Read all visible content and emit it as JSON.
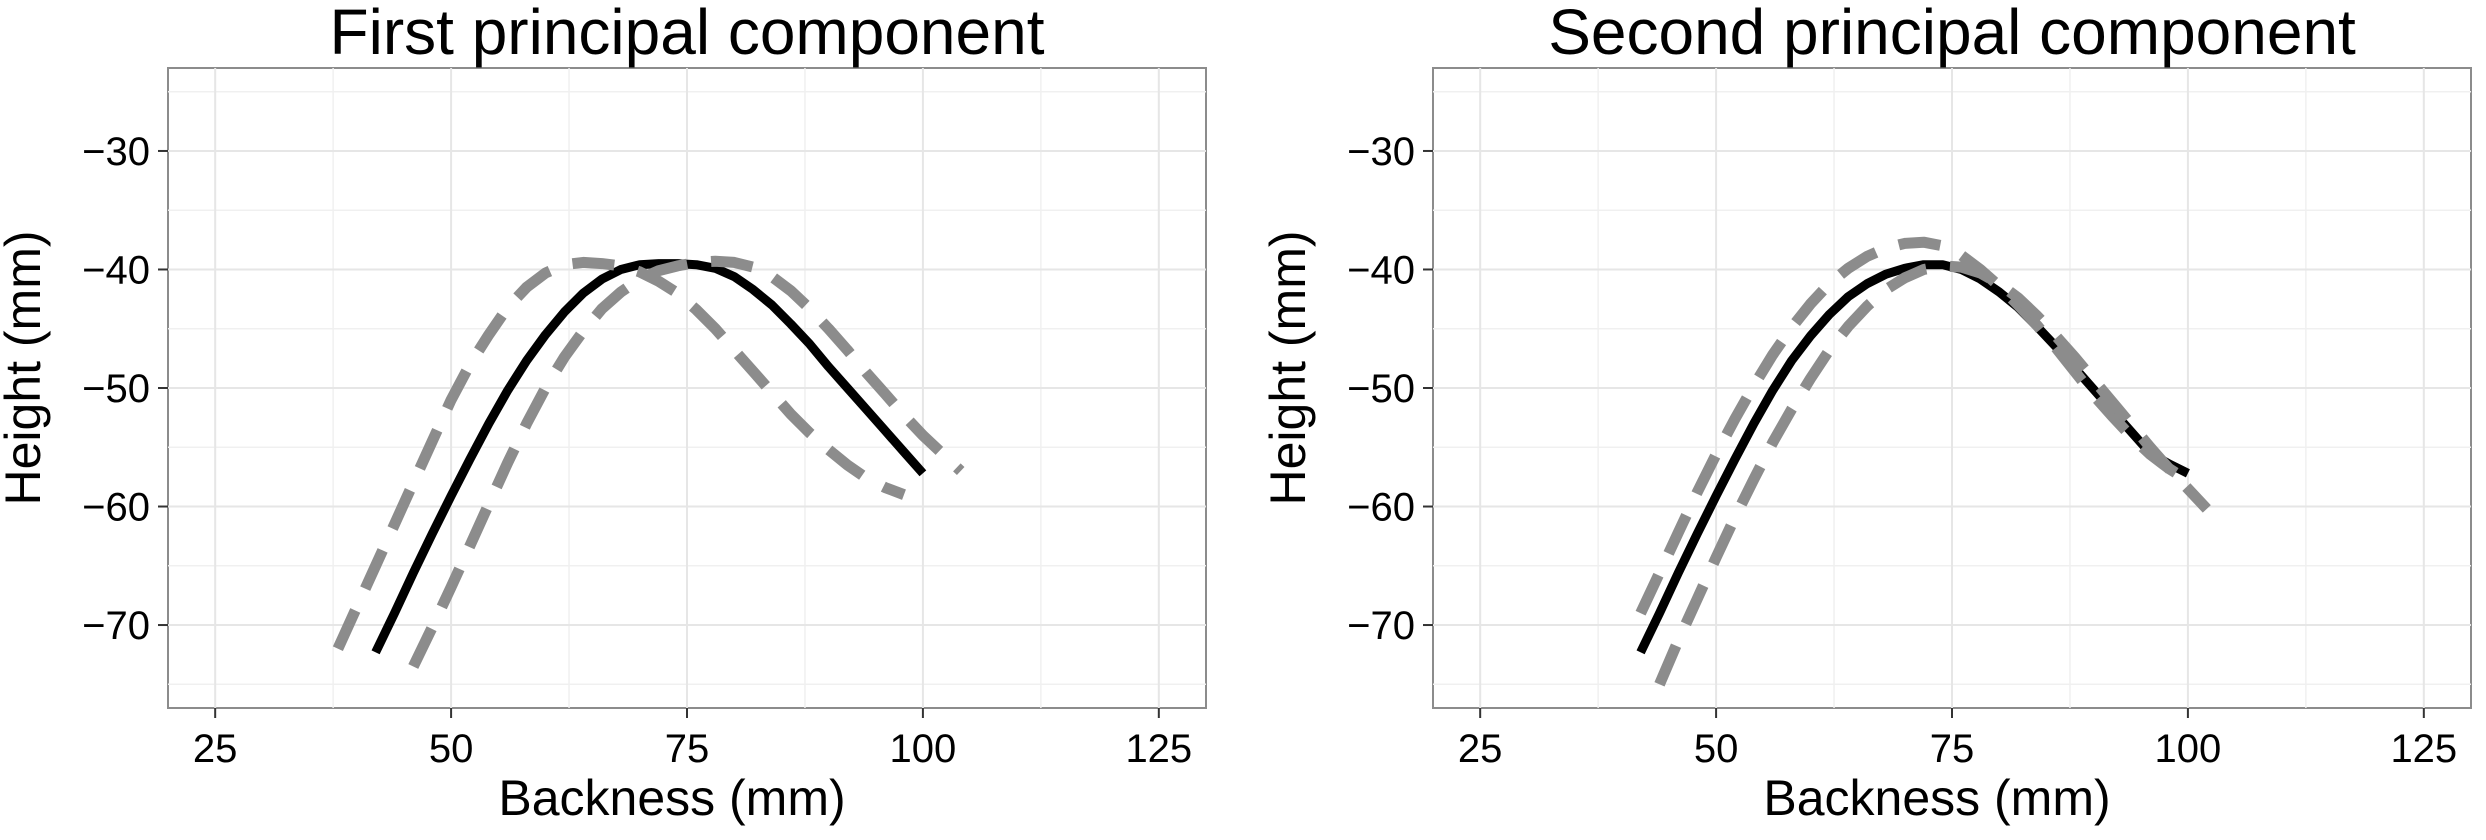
{
  "chart_data": [
    {
      "type": "line",
      "title": "First principal component",
      "xlabel": "Backness (mm)",
      "ylabel": "Height (mm)",
      "xlim": [
        20,
        130
      ],
      "ylim": [
        -77,
        -23
      ],
      "xticks": [
        25,
        50,
        75,
        100,
        125
      ],
      "yticks": [
        -70,
        -60,
        -50,
        -40,
        -30
      ],
      "grid": true,
      "series": [
        {
          "color": "#000000",
          "dash": "solid",
          "x": [
            42,
            44,
            46,
            48,
            50,
            52,
            54,
            56,
            58,
            60,
            62,
            64,
            66,
            68,
            70,
            72,
            74,
            76,
            78,
            80,
            82,
            84,
            86,
            88,
            90,
            92,
            94,
            96,
            98,
            100
          ],
          "y": [
            -72.3,
            -69.0,
            -65.6,
            -62.3,
            -59.1,
            -56.0,
            -53.0,
            -50.2,
            -47.7,
            -45.5,
            -43.6,
            -42.0,
            -40.8,
            -40.0,
            -39.6,
            -39.5,
            -39.5,
            -39.6,
            -39.9,
            -40.6,
            -41.7,
            -43.0,
            -44.6,
            -46.3,
            -48.2,
            -50.0,
            -51.8,
            -53.6,
            -55.4,
            -57.2
          ]
        },
        {
          "color": "#8c8c8c",
          "dash": "dashed",
          "x": [
            38,
            40,
            42,
            44,
            46,
            48,
            50,
            52,
            54,
            56,
            58,
            60,
            62,
            64,
            66,
            68,
            70,
            72,
            74,
            76,
            78,
            80,
            82,
            84,
            86,
            88,
            90,
            92,
            94,
            96,
            98
          ],
          "y": [
            -72.0,
            -68.5,
            -65.0,
            -61.5,
            -58.0,
            -54.5,
            -51.0,
            -48.0,
            -45.5,
            -43.2,
            -41.5,
            -40.3,
            -39.6,
            -39.4,
            -39.5,
            -39.7,
            -40.2,
            -41.0,
            -42.0,
            -43.4,
            -45.0,
            -46.8,
            -48.6,
            -50.4,
            -52.2,
            -53.8,
            -55.2,
            -56.5,
            -57.6,
            -58.4,
            -59.0
          ]
        },
        {
          "color": "#8c8c8c",
          "dash": "dashed",
          "x": [
            46,
            48,
            50,
            52,
            54,
            56,
            58,
            60,
            62,
            64,
            66,
            68,
            70,
            72,
            74,
            76,
            78,
            80,
            82,
            84,
            86,
            88,
            90,
            92,
            94,
            96,
            98,
            100,
            102,
            104
          ],
          "y": [
            -73.5,
            -70.2,
            -66.8,
            -63.3,
            -59.8,
            -56.3,
            -53.0,
            -50.0,
            -47.4,
            -45.2,
            -43.3,
            -41.9,
            -40.8,
            -40.1,
            -39.7,
            -39.4,
            -39.3,
            -39.4,
            -39.8,
            -40.6,
            -41.8,
            -43.3,
            -45.0,
            -46.8,
            -48.7,
            -50.5,
            -52.3,
            -54.0,
            -55.5,
            -57.0
          ]
        }
      ]
    },
    {
      "type": "line",
      "title": "Second principal component",
      "xlabel": "Backness (mm)",
      "ylabel": "Height (mm)",
      "xlim": [
        20,
        130
      ],
      "ylim": [
        -77,
        -23
      ],
      "xticks": [
        25,
        50,
        75,
        100,
        125
      ],
      "yticks": [
        -70,
        -60,
        -50,
        -40,
        -30
      ],
      "grid": true,
      "series": [
        {
          "color": "#000000",
          "dash": "solid",
          "x": [
            42,
            44,
            46,
            48,
            50,
            52,
            54,
            56,
            58,
            60,
            62,
            64,
            66,
            68,
            70,
            72,
            74,
            76,
            78,
            80,
            82,
            84,
            86,
            88,
            90,
            92,
            94,
            96,
            98,
            100
          ],
          "y": [
            -72.3,
            -69.0,
            -65.6,
            -62.3,
            -59.1,
            -56.0,
            -53.0,
            -50.2,
            -47.7,
            -45.6,
            -43.8,
            -42.3,
            -41.2,
            -40.4,
            -39.9,
            -39.6,
            -39.6,
            -40.0,
            -40.8,
            -41.9,
            -43.2,
            -44.8,
            -46.5,
            -48.3,
            -50.1,
            -51.9,
            -53.7,
            -55.5,
            -56.4,
            -57.2
          ]
        },
        {
          "color": "#8c8c8c",
          "dash": "dashed",
          "x": [
            42,
            44,
            46,
            48,
            50,
            52,
            54,
            56,
            58,
            60,
            62,
            64,
            66,
            68,
            70,
            72,
            74,
            76,
            78,
            80,
            82,
            84,
            86,
            88,
            90,
            92,
            94,
            96,
            98,
            100
          ],
          "y": [
            -69.0,
            -65.6,
            -62.2,
            -58.8,
            -55.6,
            -52.6,
            -49.8,
            -47.2,
            -44.9,
            -42.9,
            -41.2,
            -39.9,
            -38.9,
            -38.2,
            -37.8,
            -37.7,
            -38.0,
            -38.8,
            -40.0,
            -41.4,
            -43.0,
            -44.7,
            -46.6,
            -48.6,
            -50.6,
            -52.4,
            -54.1,
            -55.6,
            -56.8,
            -57.8
          ]
        },
        {
          "color": "#8c8c8c",
          "dash": "dashed",
          "x": [
            44,
            46,
            48,
            50,
            52,
            54,
            56,
            58,
            60,
            62,
            64,
            66,
            68,
            70,
            72,
            74,
            76,
            78,
            80,
            82,
            84,
            86,
            88,
            90,
            92,
            94,
            96,
            98,
            100,
            102
          ],
          "y": [
            -75.0,
            -71.3,
            -67.8,
            -64.3,
            -60.9,
            -57.7,
            -54.6,
            -51.8,
            -49.2,
            -46.8,
            -44.8,
            -43.1,
            -41.7,
            -40.7,
            -40.0,
            -39.7,
            -39.8,
            -40.3,
            -41.2,
            -42.4,
            -43.9,
            -45.6,
            -47.4,
            -49.3,
            -51.2,
            -53.1,
            -55.0,
            -56.8,
            -58.5,
            -60.2
          ]
        }
      ]
    }
  ]
}
